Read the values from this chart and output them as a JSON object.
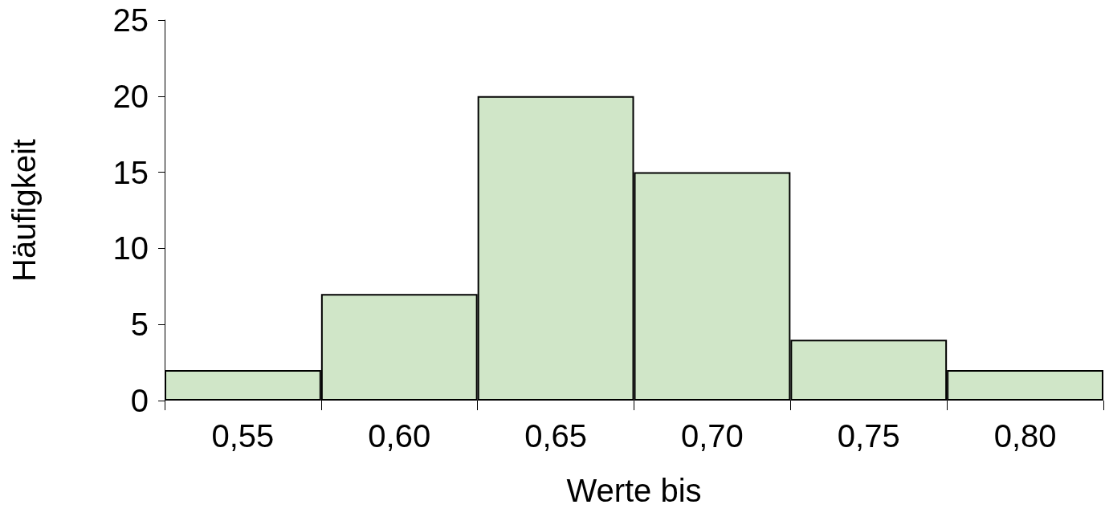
{
  "chart_data": {
    "type": "bar",
    "xlabel": "Werte bis",
    "ylabel": "Häufigkeit",
    "categories": [
      "0,55",
      "0,60",
      "0,65",
      "0,70",
      "0,75",
      "0,80"
    ],
    "values": [
      2,
      7,
      20,
      15,
      4,
      2
    ],
    "color": "#d0e6c8",
    "ylim": [
      0,
      25
    ],
    "yticks": [
      0,
      5,
      10,
      15,
      20,
      25
    ],
    "grid": false
  }
}
